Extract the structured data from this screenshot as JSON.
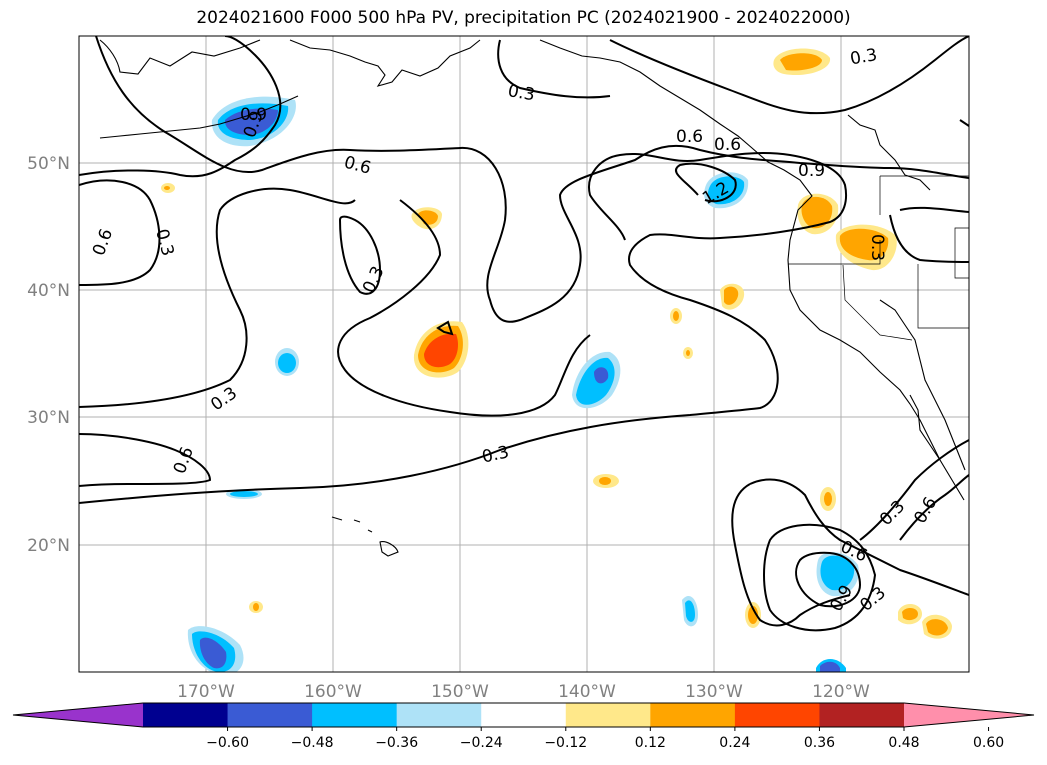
{
  "title": "2024021600 F000 500 hPa PV, precipitation PC (2024021900 - 2024022000)",
  "lat_labels": [
    "50°N",
    "40°N",
    "30°N",
    "20°N"
  ],
  "lon_labels": [
    "170°W",
    "160°W",
    "150°W",
    "140°W",
    "130°W",
    "120°W"
  ],
  "contour_labels": [
    "0.3",
    "0.3",
    "0.6",
    "0.6",
    "0.3",
    "0.6",
    "0.3",
    "1.2",
    "0.9",
    "0.3",
    "0.6",
    "0.3",
    "0.3",
    "0.6",
    "0.6",
    "0.9",
    "0.3",
    "0.9",
    "0.3",
    "0.6",
    "0.9"
  ],
  "colorbar": {
    "ticks": [
      "−0.60",
      "−0.48",
      "−0.36",
      "−0.24",
      "−0.12",
      "0.12",
      "0.24",
      "0.36",
      "0.48",
      "0.60"
    ],
    "colors": [
      "#9933cc",
      "#000090",
      "#3a5bd4",
      "#00bfff",
      "#aee2f7",
      "#ffffff",
      "#ffe88a",
      "#ffa500",
      "#ff4500",
      "#b22222",
      "#ff8fab"
    ]
  }
}
